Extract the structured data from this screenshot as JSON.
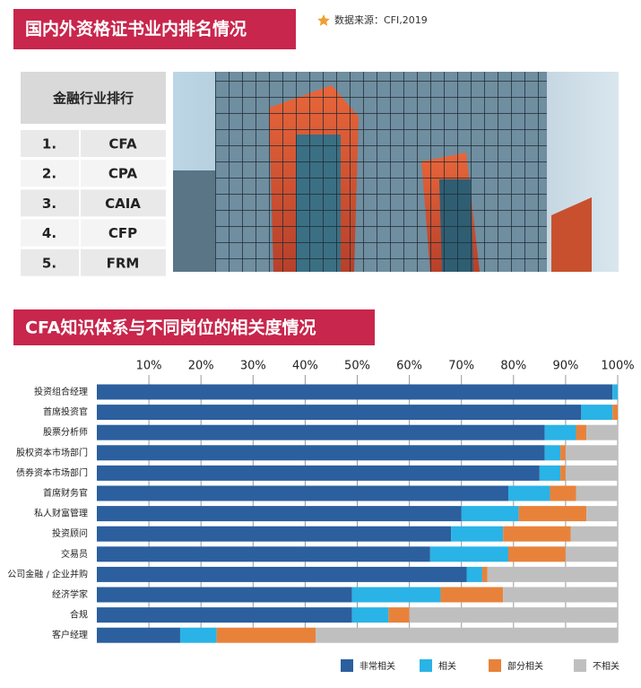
{
  "header": {
    "title": "国内外资格证书业内排名情况",
    "source": "数据来源：CFI,2019"
  },
  "ranking": {
    "header": "金融行业排行",
    "rows": [
      [
        "1.",
        "CFA"
      ],
      [
        "2.",
        "CPA"
      ],
      [
        "3.",
        "CAIA"
      ],
      [
        "4.",
        "CFP"
      ],
      [
        "5.",
        "FRM"
      ]
    ]
  },
  "chart_data": {
    "type": "bar",
    "title": "CFA知识体系与不同岗位的相关度情况",
    "categories": [
      "投资组合经理",
      "首席投资官",
      "股票分析师",
      "股权资本市场部门",
      "债券资本市场部门",
      "首席财务官",
      "私人财富管理",
      "投资顾问",
      "交易员",
      "公司金融 / 企业并购",
      "经济学家",
      "合规",
      "客户经理"
    ],
    "series": [
      {
        "name": "非常相关",
        "color": "#2b5f9e",
        "values": [
          99,
          93,
          86,
          86,
          85,
          79,
          70,
          68,
          64,
          71,
          49,
          49,
          16
        ]
      },
      {
        "name": "相关",
        "color": "#2ab3e6",
        "values": [
          1,
          6,
          6,
          3,
          4,
          8,
          11,
          10,
          15,
          3,
          17,
          7,
          7
        ]
      },
      {
        "name": "部分相关",
        "color": "#e8823a",
        "values": [
          0,
          1,
          2,
          1,
          1,
          5,
          13,
          13,
          11,
          1,
          12,
          4,
          19
        ]
      },
      {
        "name": "不相关",
        "color": "#bfbfbf",
        "values": [
          0,
          0,
          6,
          10,
          10,
          8,
          6,
          9,
          10,
          25,
          22,
          40,
          58
        ]
      }
    ],
    "xlim": [
      0,
      100
    ],
    "xticks": [
      {
        "value": 10,
        "label": "10%"
      },
      {
        "value": 20,
        "label": "20%"
      },
      {
        "value": 30,
        "label": "30%"
      },
      {
        "value": 40,
        "label": "40%"
      },
      {
        "value": 50,
        "label": "50%"
      },
      {
        "value": 60,
        "label": "60%"
      },
      {
        "value": 70,
        "label": "70%"
      },
      {
        "value": 80,
        "label": "80%"
      },
      {
        "value": 90,
        "label": "90%"
      },
      {
        "value": 100,
        "label": "100%"
      }
    ],
    "grid": true,
    "legend": "bottom"
  }
}
